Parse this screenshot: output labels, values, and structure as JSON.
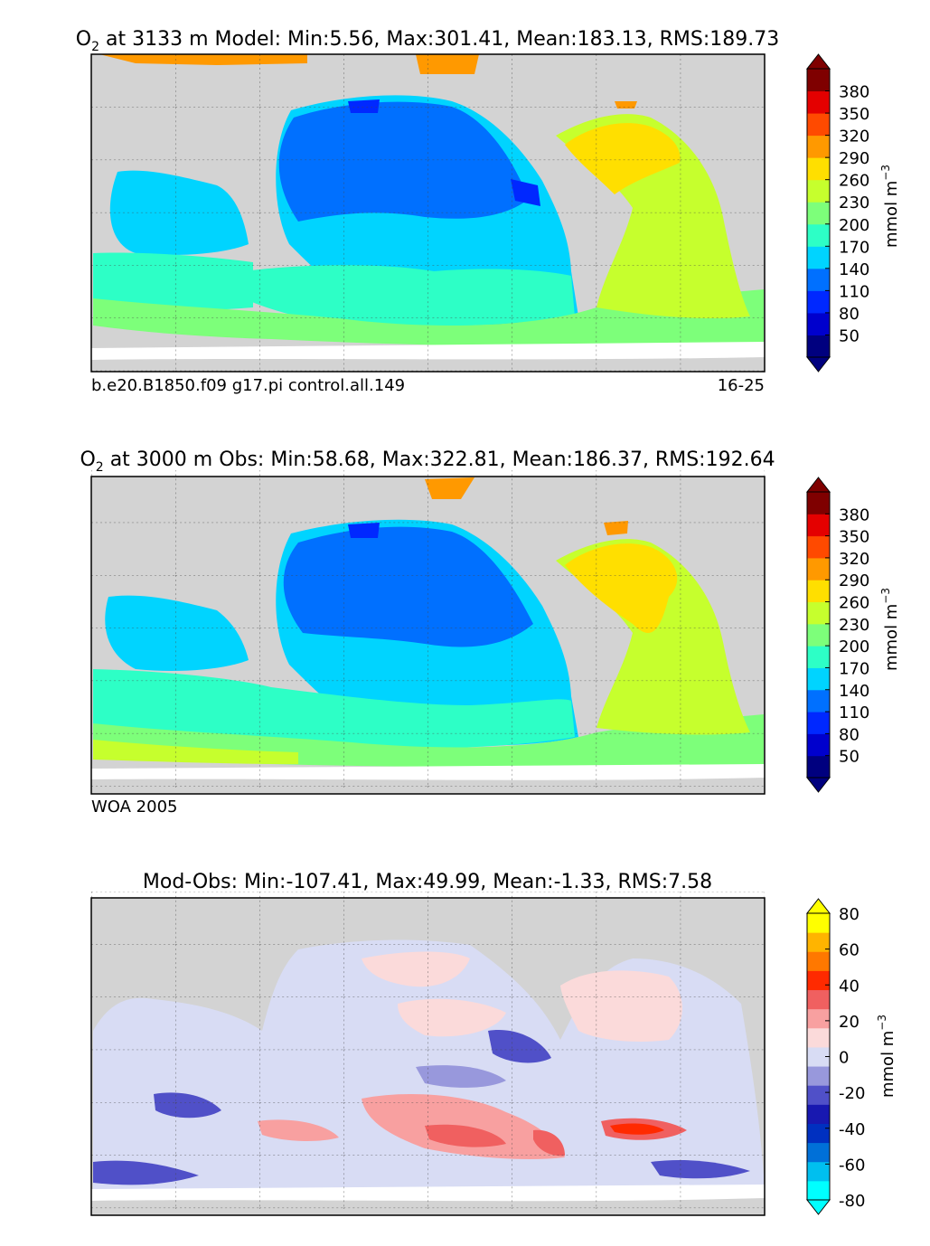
{
  "chart_data": [
    {
      "type": "heatmap",
      "title_prefix": "O",
      "title_sub": "2",
      "title": "at 3133 m Model: Min:5.56, Max:301.41, Mean:183.13, RMS:189.73",
      "footer_left": "b.e20.B1850.f09 g17.pi control.all.149",
      "footer_right": "16-25",
      "colorbar": {
        "unit_main": "mmol m",
        "unit_exp": "−3",
        "ticks": [
          "50",
          "80",
          "110",
          "140",
          "170",
          "200",
          "230",
          "260",
          "290",
          "320",
          "350",
          "380"
        ],
        "colors": [
          "#00007f",
          "#0000cd",
          "#0028ff",
          "#0070ff",
          "#00d4ff",
          "#2dffc6",
          "#7dff7a",
          "#c6ff2d",
          "#ffdf00",
          "#ff9900",
          "#ff4a00",
          "#e40000",
          "#7f0000"
        ]
      }
    },
    {
      "type": "heatmap",
      "title_prefix": "O",
      "title_sub": "2",
      "title": "at 3000 m Obs: Min:58.68, Max:322.81, Mean:186.37, RMS:192.64",
      "footer_left": "WOA 2005",
      "footer_right": "",
      "colorbar": {
        "unit_main": "mmol m",
        "unit_exp": "−3",
        "ticks": [
          "50",
          "80",
          "110",
          "140",
          "170",
          "200",
          "230",
          "260",
          "290",
          "320",
          "350",
          "380"
        ],
        "colors": [
          "#00007f",
          "#0000cd",
          "#0028ff",
          "#0070ff",
          "#00d4ff",
          "#2dffc6",
          "#7dff7a",
          "#c6ff2d",
          "#ffdf00",
          "#ff9900",
          "#ff4a00",
          "#e40000",
          "#7f0000"
        ]
      }
    },
    {
      "type": "heatmap",
      "title_prefix": "",
      "title_sub": "",
      "title": "Mod-Obs: Min:-107.41, Max:49.99, Mean:-1.33, RMS:7.58",
      "footer_left": "",
      "footer_right": "",
      "colorbar": {
        "unit_main": "mmol m",
        "unit_exp": "−3",
        "ticks": [
          "-80",
          "-60",
          "-40",
          "-20",
          "0",
          "20",
          "40",
          "60",
          "80"
        ],
        "colors": [
          "#00ffff",
          "#00bfef",
          "#0070d8",
          "#0030c0",
          "#1818b0",
          "#5050c8",
          "#9898dc",
          "#d8dcf4",
          "#fbdada",
          "#f8a0a0",
          "#f06060",
          "#ff2a00",
          "#ff7800",
          "#ffb400",
          "#ffff00"
        ]
      }
    }
  ]
}
